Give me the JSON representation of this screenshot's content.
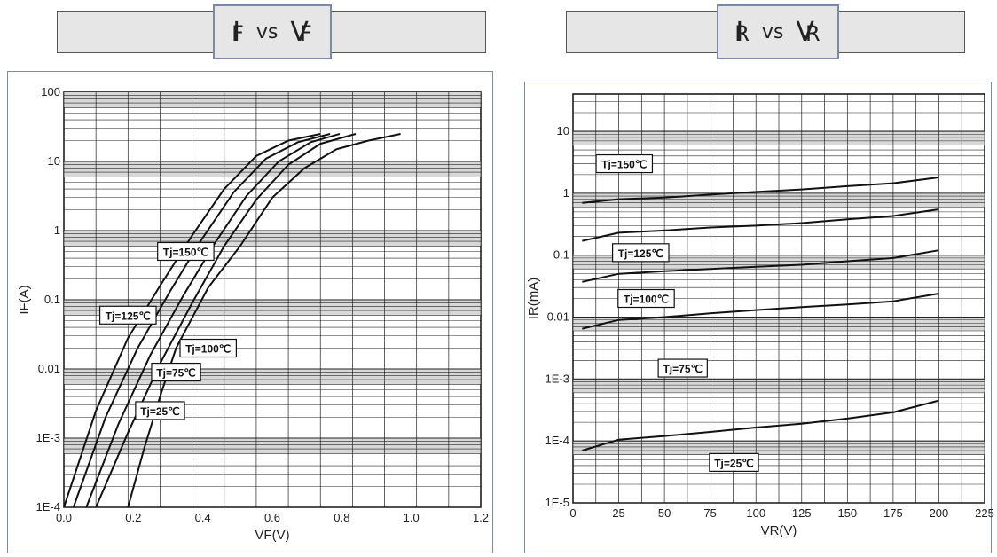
{
  "headers": {
    "left": {
      "main1": "I",
      "sub1": "F",
      "vs": "vs",
      "main2": "V",
      "sub2": "F"
    },
    "right": {
      "main1": "I",
      "sub1": "R",
      "vs": "vs",
      "main2": "V",
      "sub2": "R"
    }
  },
  "chart_data": [
    {
      "type": "line",
      "xlabel": "VF(V)",
      "ylabel": "IF(A)",
      "xlim": [
        0.0,
        1.3
      ],
      "ylim": [
        0.0001,
        100
      ],
      "y_scale": "log",
      "x_ticks": [
        "0.0",
        "0.2",
        "0.4",
        "0.6",
        "0.8",
        "1.0",
        "1.2"
      ],
      "y_ticks": [
        "1E-4",
        "1E-3",
        "0.01",
        "0.1",
        "1",
        "10",
        "100"
      ],
      "series": [
        {
          "name": "Tj=150℃",
          "points": [
            [
              0.0,
              0.0001
            ],
            [
              0.1,
              0.0025
            ],
            [
              0.2,
              0.028
            ],
            [
              0.3,
              0.16
            ],
            [
              0.4,
              0.85
            ],
            [
              0.5,
              4.0
            ],
            [
              0.6,
              12
            ],
            [
              0.7,
              20
            ],
            [
              0.8,
              25
            ]
          ]
        },
        {
          "name": "Tj=125℃",
          "points": [
            [
              0.03,
              0.0001
            ],
            [
              0.13,
              0.002
            ],
            [
              0.23,
              0.02
            ],
            [
              0.33,
              0.13
            ],
            [
              0.43,
              0.75
            ],
            [
              0.53,
              3.6
            ],
            [
              0.63,
              11
            ],
            [
              0.73,
              19
            ],
            [
              0.83,
              25
            ]
          ]
        },
        {
          "name": "Tj=100℃",
          "points": [
            [
              0.07,
              0.0001
            ],
            [
              0.17,
              0.0016
            ],
            [
              0.27,
              0.016
            ],
            [
              0.37,
              0.11
            ],
            [
              0.47,
              0.65
            ],
            [
              0.57,
              3.2
            ],
            [
              0.67,
              10
            ],
            [
              0.77,
              19
            ],
            [
              0.86,
              25
            ]
          ]
        },
        {
          "name": "Tj=75℃",
          "points": [
            [
              0.1,
              0.0001
            ],
            [
              0.2,
              0.0012
            ],
            [
              0.3,
              0.012
            ],
            [
              0.4,
              0.09
            ],
            [
              0.5,
              0.6
            ],
            [
              0.6,
              2.8
            ],
            [
              0.7,
              9
            ],
            [
              0.8,
              18
            ],
            [
              0.91,
              25
            ]
          ]
        },
        {
          "name": "Tj=25℃",
          "points": [
            [
              0.2,
              0.0001
            ],
            [
              0.25,
              0.0007
            ],
            [
              0.3,
              0.004
            ],
            [
              0.35,
              0.02
            ],
            [
              0.45,
              0.15
            ],
            [
              0.55,
              0.6
            ],
            [
              0.65,
              3
            ],
            [
              0.75,
              8
            ],
            [
              0.85,
              15
            ],
            [
              0.95,
              20
            ],
            [
              1.05,
              25
            ]
          ]
        }
      ],
      "annotations": [
        {
          "text": "Tj=150℃",
          "x": 0.38,
          "y": 0.5
        },
        {
          "text": "Tj=125℃",
          "x": 0.2,
          "y": 0.06
        },
        {
          "text": "Tj=100℃",
          "x": 0.45,
          "y": 0.02
        },
        {
          "text": "Tj=75℃",
          "x": 0.35,
          "y": 0.009
        },
        {
          "text": "Tj=25℃",
          "x": 0.3,
          "y": 0.0025
        }
      ]
    },
    {
      "type": "line",
      "xlabel": "VR(V)",
      "ylabel": "IR(mA)",
      "xlim": [
        0,
        225
      ],
      "ylim": [
        1e-05,
        40
      ],
      "y_scale": "log",
      "x_ticks": [
        "0",
        "25",
        "50",
        "75",
        "100",
        "125",
        "150",
        "175",
        "200",
        "225"
      ],
      "y_ticks": [
        "1E-5",
        "1E-4",
        "1E-3",
        "0.01",
        "0.1",
        "1",
        "10"
      ],
      "series": [
        {
          "name": "Tj=150℃",
          "points": [
            [
              5,
              0.7
            ],
            [
              25,
              0.8
            ],
            [
              50,
              0.85
            ],
            [
              75,
              0.95
            ],
            [
              100,
              1.05
            ],
            [
              125,
              1.15
            ],
            [
              150,
              1.3
            ],
            [
              175,
              1.45
            ],
            [
              200,
              1.8
            ]
          ]
        },
        {
          "name": "Tj=125℃",
          "points": [
            [
              5,
              0.17
            ],
            [
              25,
              0.23
            ],
            [
              50,
              0.25
            ],
            [
              75,
              0.28
            ],
            [
              100,
              0.3
            ],
            [
              125,
              0.33
            ],
            [
              150,
              0.38
            ],
            [
              175,
              0.43
            ],
            [
              200,
              0.55
            ]
          ]
        },
        {
          "name": "Tj=100℃",
          "points": [
            [
              5,
              0.037
            ],
            [
              25,
              0.05
            ],
            [
              50,
              0.055
            ],
            [
              75,
              0.06
            ],
            [
              100,
              0.065
            ],
            [
              125,
              0.07
            ],
            [
              150,
              0.08
            ],
            [
              175,
              0.09
            ],
            [
              200,
              0.12
            ]
          ]
        },
        {
          "name": "Tj=75℃",
          "points": [
            [
              5,
              0.0065
            ],
            [
              25,
              0.009
            ],
            [
              50,
              0.01
            ],
            [
              75,
              0.0115
            ],
            [
              100,
              0.013
            ],
            [
              125,
              0.0145
            ],
            [
              150,
              0.016
            ],
            [
              175,
              0.018
            ],
            [
              200,
              0.024
            ]
          ]
        },
        {
          "name": "Tj=25℃",
          "points": [
            [
              5,
              7e-05
            ],
            [
              25,
              0.000105
            ],
            [
              50,
              0.00012
            ],
            [
              75,
              0.00014
            ],
            [
              100,
              0.000165
            ],
            [
              125,
              0.00019
            ],
            [
              150,
              0.00023
            ],
            [
              175,
              0.00029
            ],
            [
              200,
              0.00045
            ]
          ]
        }
      ],
      "annotations": [
        {
          "text": "Tj=150℃",
          "x": 28,
          "y": 3.0
        },
        {
          "text": "Tj=125℃",
          "x": 37,
          "y": 0.11
        },
        {
          "text": "Tj=100℃",
          "x": 40,
          "y": 0.02
        },
        {
          "text": "Tj=75℃",
          "x": 60,
          "y": 0.0015
        },
        {
          "text": "Tj=25℃",
          "x": 88,
          "y": 4.5e-05
        }
      ]
    }
  ]
}
